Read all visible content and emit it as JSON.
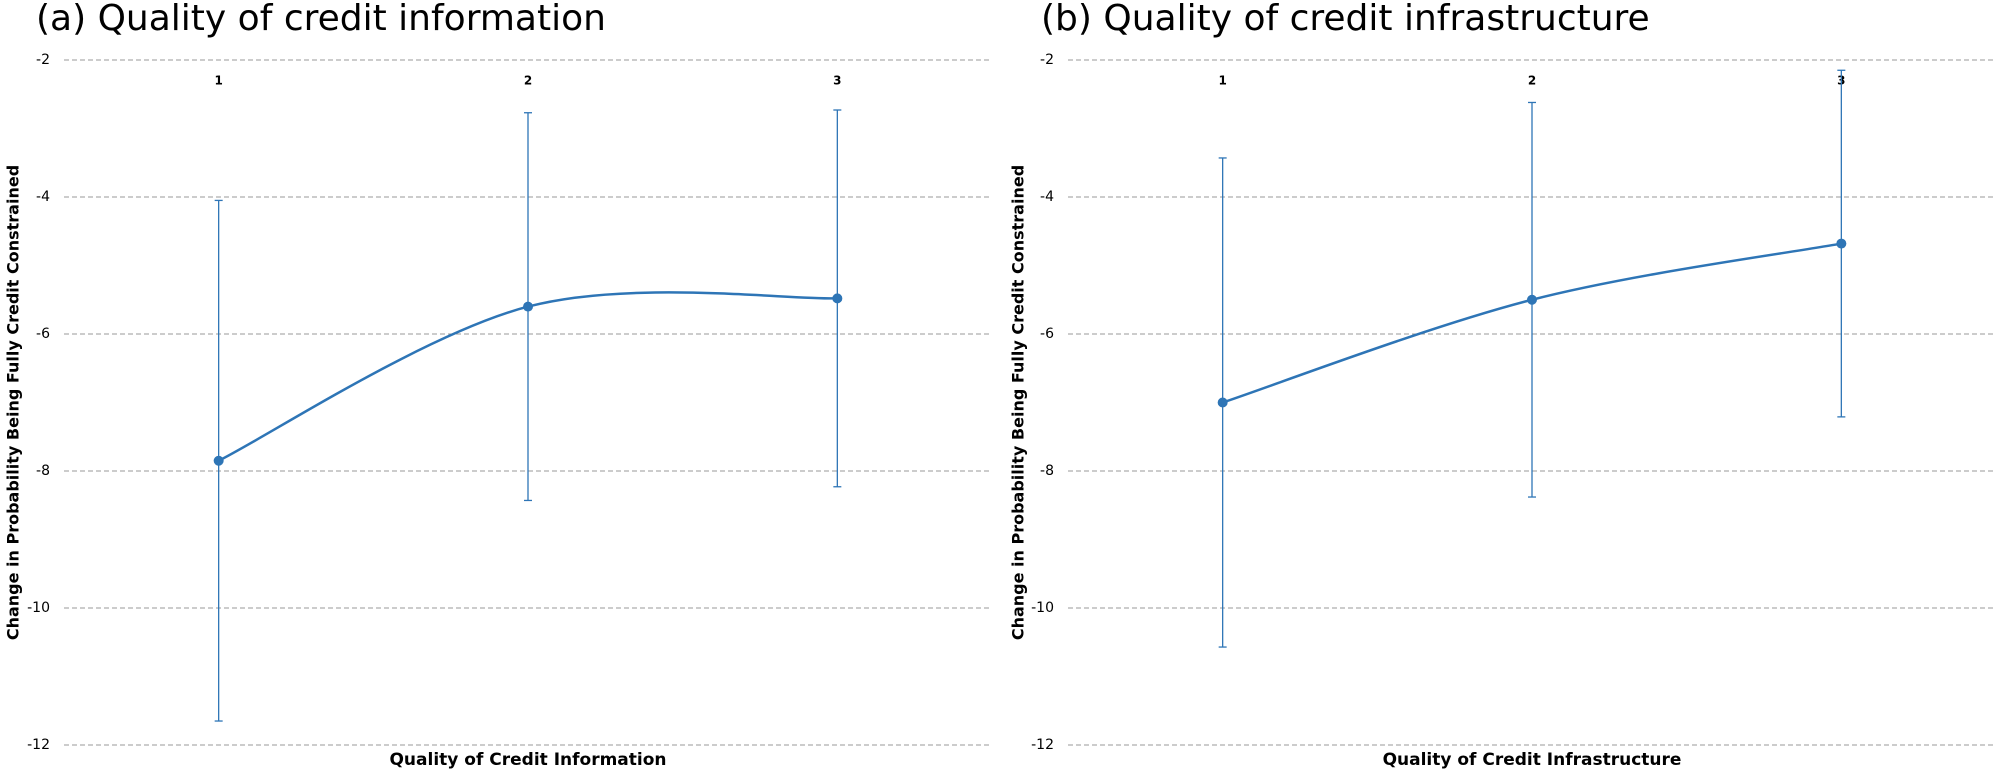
{
  "chart_data": [
    {
      "type": "line",
      "title": "(a) Quality of credit information",
      "x_label": "Quality of Credit Information",
      "y_label": "Change in Probability Being Fully Credit Constrained",
      "categories": [
        "1",
        "2",
        "3"
      ],
      "series": [
        {
          "color": "#2e75b6",
          "values": [
            -7.85,
            -5.6,
            -5.48
          ],
          "errors": [
            3.8,
            2.83,
            2.75
          ]
        }
      ],
      "ylim": [
        -12,
        -2
      ],
      "yticks": [
        -12,
        -10,
        -8,
        -6,
        -4,
        -2
      ],
      "grid": true,
      "smooth": true
    },
    {
      "type": "line",
      "title": "(b) Quality of credit infrastructure",
      "x_label": "Quality of Credit Infrastructure",
      "y_label": "Change in Probability Being Fully Credit Constrained",
      "categories": [
        "1",
        "2",
        "3"
      ],
      "series": [
        {
          "color": "#2e75b6",
          "values": [
            -7.0,
            -5.5,
            -4.68
          ],
          "errors": [
            3.57,
            2.88,
            2.53
          ]
        }
      ],
      "ylim": [
        -12,
        -2
      ],
      "yticks": [
        -12,
        -10,
        -8,
        -6,
        -4,
        -2
      ],
      "grid": true,
      "smooth": true
    }
  ]
}
